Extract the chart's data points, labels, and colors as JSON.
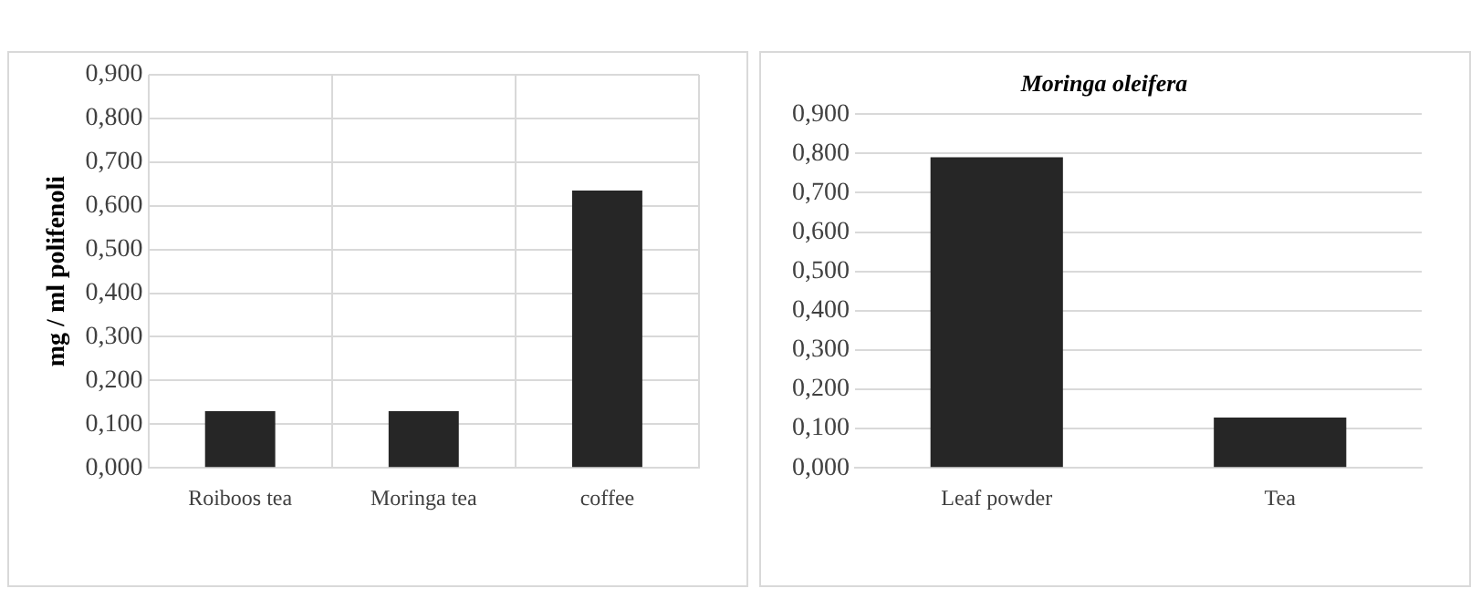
{
  "chart_data": [
    {
      "type": "bar",
      "ylabel": "mg / ml polifenoli",
      "categories": [
        "Roiboos tea",
        "Moringa tea",
        "coffee"
      ],
      "values": [
        0.13,
        0.13,
        0.635
      ],
      "color": "#262626",
      "ylim": [
        0,
        0.9
      ],
      "yticks": [
        {
          "value": 0,
          "label": "0,000"
        },
        {
          "value": 0.1,
          "label": "0,100"
        },
        {
          "value": 0.2,
          "label": "0,200"
        },
        {
          "value": 0.3,
          "label": "0,300"
        },
        {
          "value": 0.4,
          "label": "0,400"
        },
        {
          "value": 0.5,
          "label": "0,500"
        },
        {
          "value": 0.6,
          "label": "0,600"
        },
        {
          "value": 0.7,
          "label": "0,700"
        },
        {
          "value": 0.8,
          "label": "0,800"
        },
        {
          "value": 0.9,
          "label": "0,900"
        }
      ],
      "grid": true,
      "legend": false
    },
    {
      "type": "bar",
      "title": "Moringa oleifera",
      "categories": [
        "Leaf powder",
        "Tea"
      ],
      "values": [
        0.79,
        0.128
      ],
      "color": "#262626",
      "ylim": [
        0,
        0.9
      ],
      "yticks": [
        {
          "value": 0,
          "label": "0,000"
        },
        {
          "value": 0.1,
          "label": "0,100"
        },
        {
          "value": 0.2,
          "label": "0,200"
        },
        {
          "value": 0.3,
          "label": "0,300"
        },
        {
          "value": 0.4,
          "label": "0,400"
        },
        {
          "value": 0.5,
          "label": "0,500"
        },
        {
          "value": 0.6,
          "label": "0,600"
        },
        {
          "value": 0.7,
          "label": "0,700"
        },
        {
          "value": 0.8,
          "label": "0,800"
        },
        {
          "value": 0.9,
          "label": "0,900"
        }
      ],
      "grid": "y",
      "legend": false
    }
  ]
}
